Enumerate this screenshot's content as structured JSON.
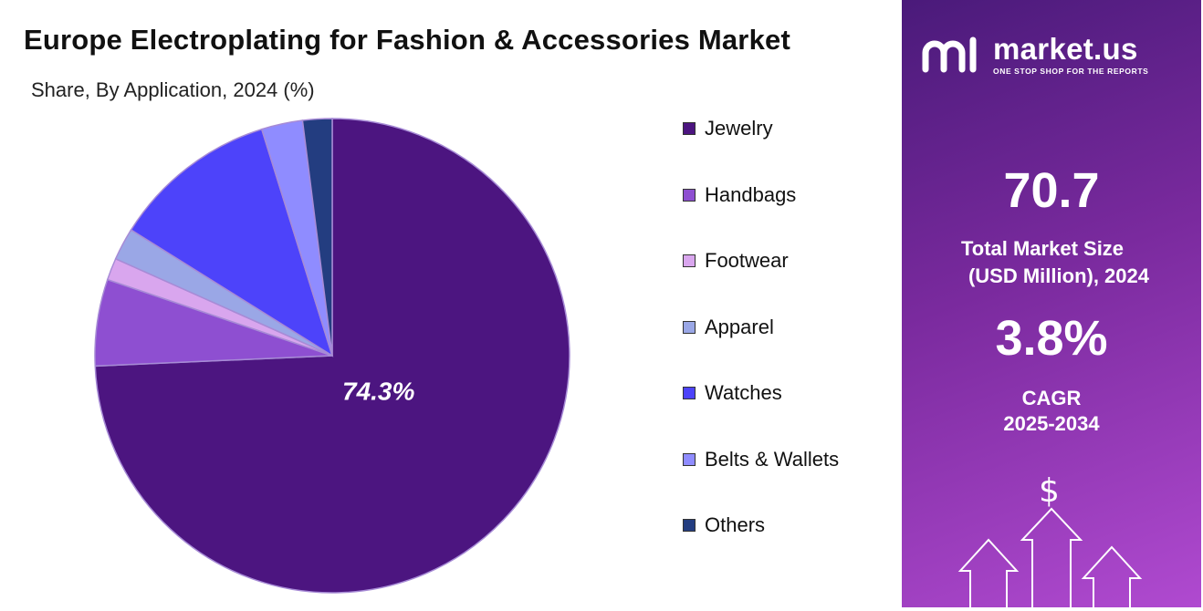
{
  "chart_data": {
    "type": "pie",
    "title": "Europe Electroplating  for Fashion & Accessories Market",
    "subtitle": "Share, By Application, 2024 (%)",
    "slices": [
      {
        "label": "Jewelry",
        "value": 74.3,
        "color": "#4c1580",
        "data_label": "74.3%"
      },
      {
        "label": "Handbags",
        "value": 5.9,
        "color": "#8e4fd1",
        "data_label": ""
      },
      {
        "label": "Footwear",
        "value": 1.5,
        "color": "#d9a6ee",
        "data_label": ""
      },
      {
        "label": "Apparel",
        "value": 2.2,
        "color": "#9aa7e6",
        "data_label": ""
      },
      {
        "label": "Watches",
        "value": 11.3,
        "color": "#4d43fa",
        "data_label": ""
      },
      {
        "label": "Belts & Wallets",
        "value": 2.8,
        "color": "#8f8cff",
        "data_label": ""
      },
      {
        "label": "Others",
        "value": 2.0,
        "color": "#233d80",
        "data_label": ""
      }
    ],
    "start_angle_deg": 0,
    "direction": "clockwise",
    "legend_position": "right"
  },
  "brand": {
    "name": "market.us",
    "tagline": "ONE STOP SHOP FOR THE REPORTS"
  },
  "stats": {
    "market_size_value": "70.7",
    "market_size_label_line1": "Total Market Size",
    "market_size_label_line2": "(USD Million), 2024",
    "cagr_value": "3.8%",
    "cagr_label_line1": "CAGR",
    "cagr_label_line2": "2025-2034",
    "currency_symbol": "$"
  }
}
